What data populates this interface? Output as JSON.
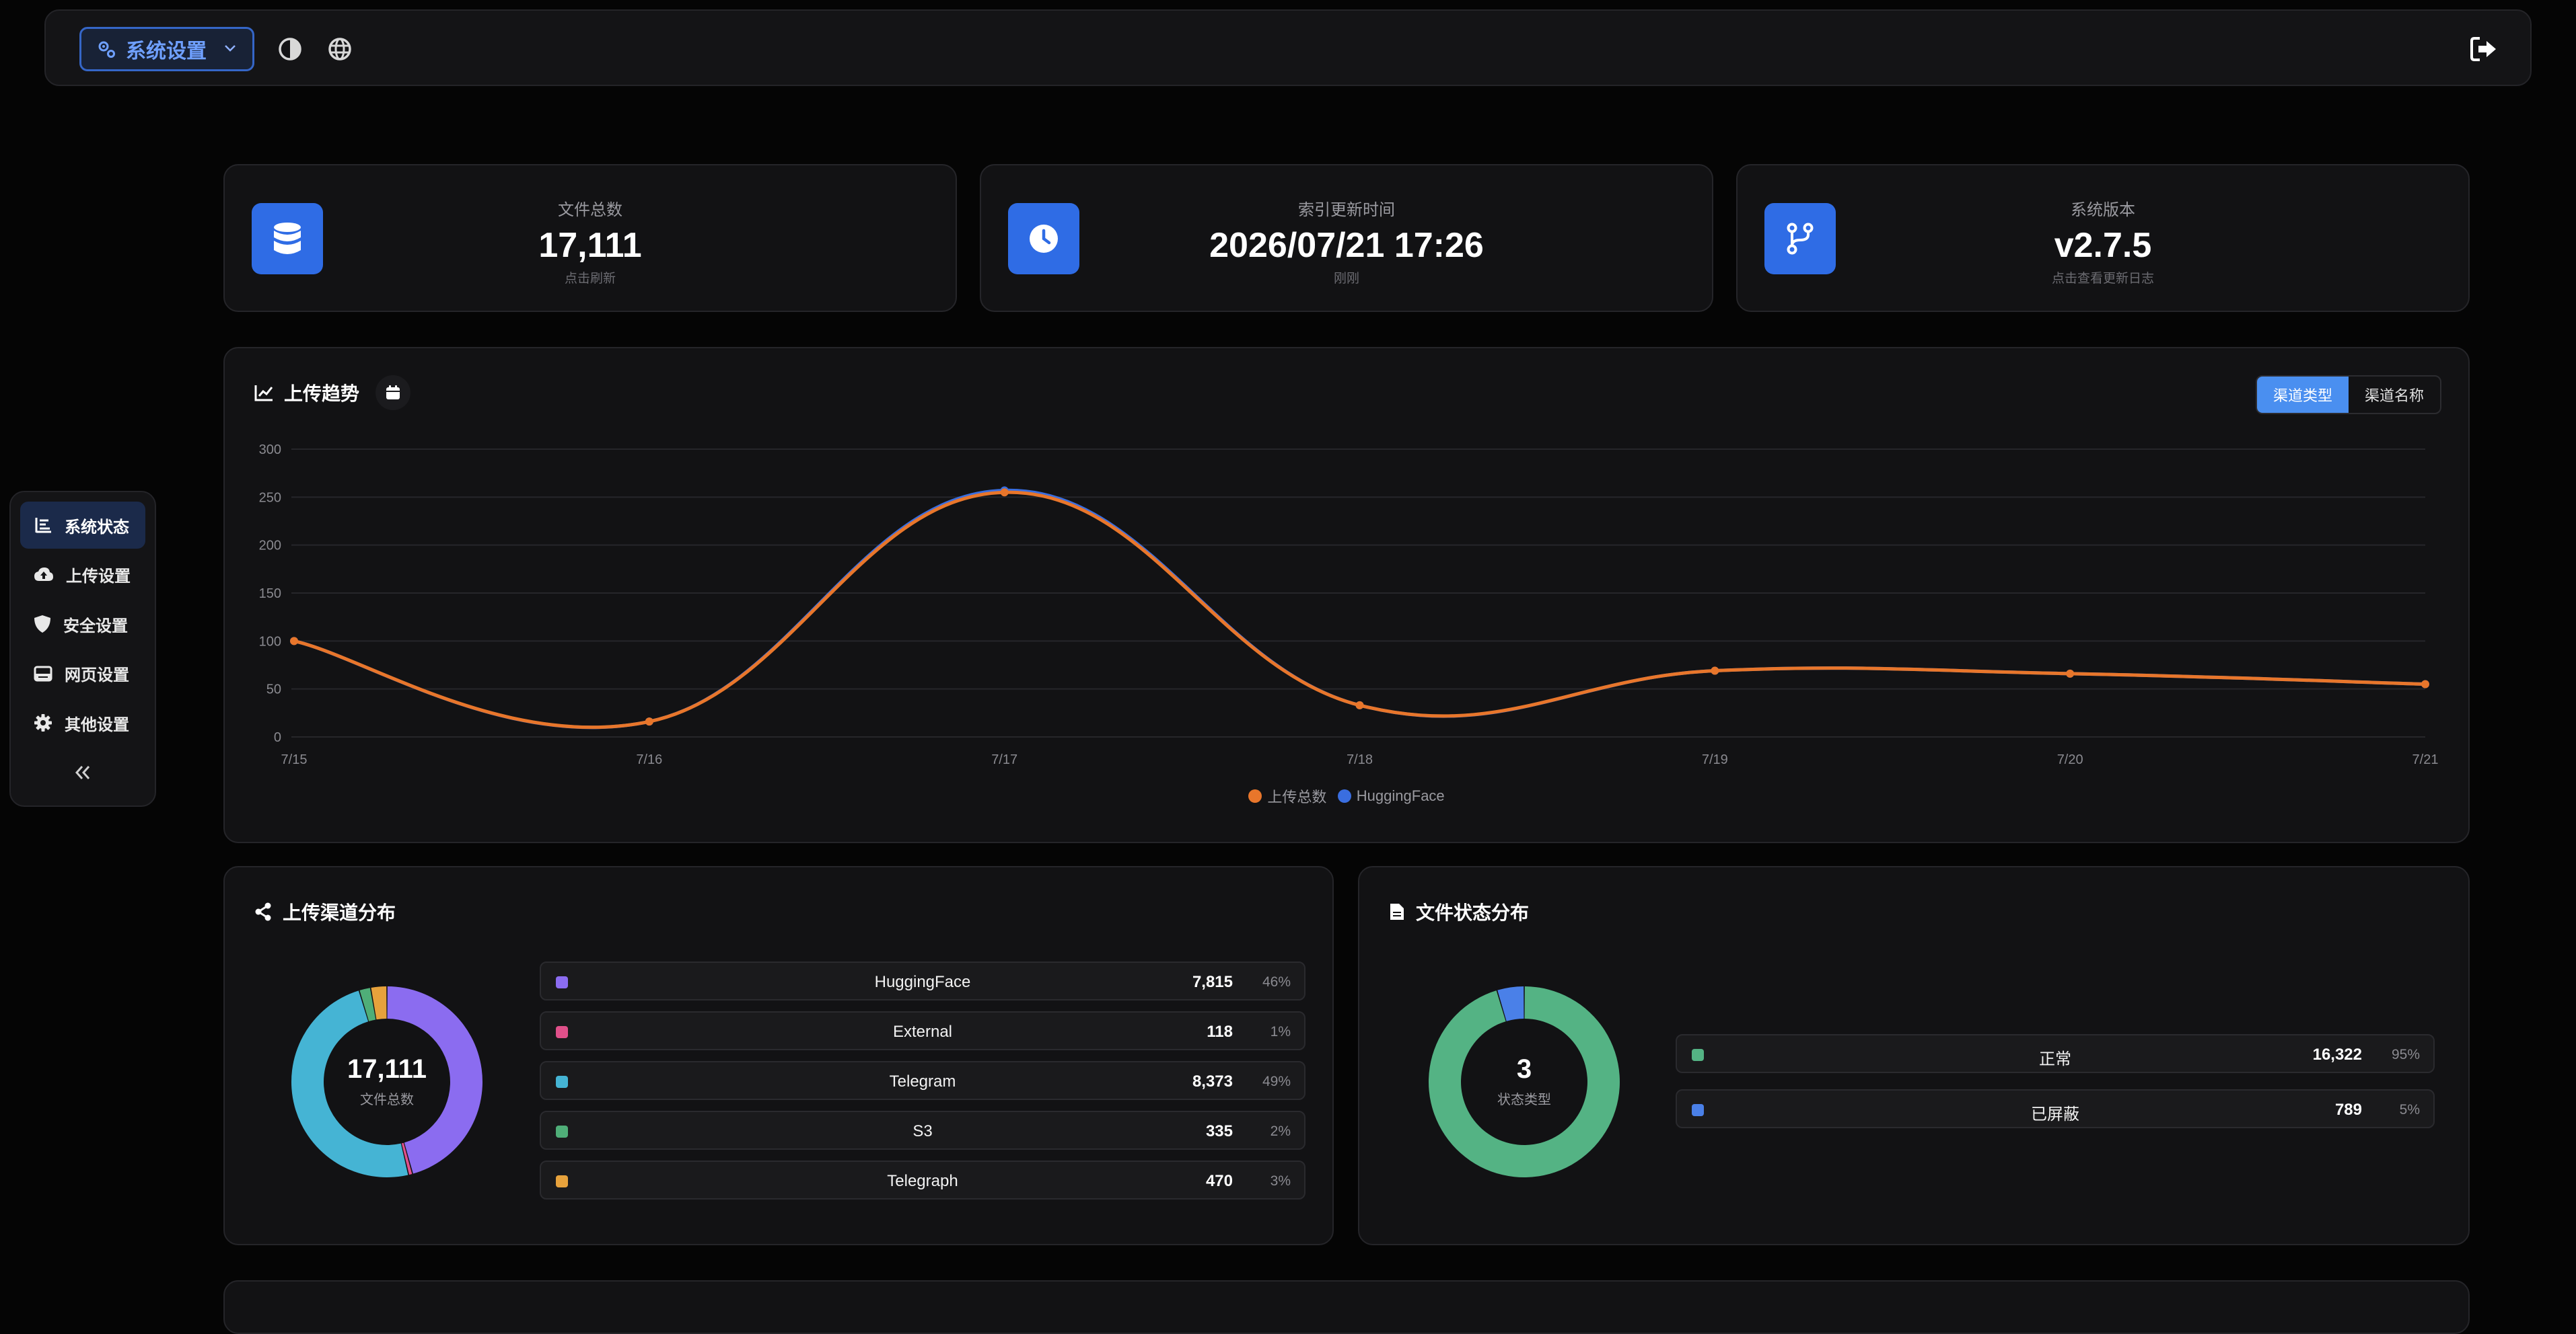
{
  "topbar": {
    "settings_label": "系统设置",
    "icons": [
      "gears-icon",
      "chevron-down-icon",
      "theme-toggle-icon",
      "globe-icon",
      "logout-icon"
    ]
  },
  "sidebar": {
    "items": [
      {
        "label": "系统状态",
        "icon": "bar-list-icon",
        "active": true
      },
      {
        "label": "上传设置",
        "icon": "cloud-upload-icon",
        "active": false
      },
      {
        "label": "安全设置",
        "icon": "shield-icon",
        "active": false
      },
      {
        "label": "网页设置",
        "icon": "window-icon",
        "active": false
      },
      {
        "label": "其他设置",
        "icon": "gear-icon",
        "active": false
      }
    ],
    "collapse_icon": "double-chevron-left-icon"
  },
  "stats": [
    {
      "label": "文件总数",
      "value": "17,111",
      "sub": "点击刷新",
      "icon": "database-icon"
    },
    {
      "label": "索引更新时间",
      "value": "2026/07/21 17:26",
      "sub": "刚刚",
      "icon": "clock-icon"
    },
    {
      "label": "系统版本",
      "value": "v2.7.5",
      "sub": "点击查看更新日志",
      "icon": "git-branch-icon"
    }
  ],
  "trend": {
    "title": "上传趋势",
    "toggle": [
      "渠道类型",
      "渠道名称"
    ],
    "active_toggle": 0
  },
  "colors": {
    "accent": "#2f6ce5",
    "orange": "#e8762b",
    "blue": "#3a6ee0"
  },
  "chart_data": [
    {
      "type": "line",
      "title": "上传趋势",
      "x": [
        "7/15",
        "7/16",
        "7/17",
        "7/18",
        "7/19",
        "7/20",
        "7/21"
      ],
      "ylim": [
        0,
        300
      ],
      "yticks": [
        "300",
        "250",
        "200",
        "150",
        "100",
        "50",
        "0"
      ],
      "grid": true,
      "legend": "bottom",
      "series": [
        {
          "name": "上传总数",
          "color": "#e8762b",
          "values": [
            100,
            16,
            255,
            33,
            69,
            66,
            55
          ]
        },
        {
          "name": "HuggingFace",
          "color": "#3a6ee0",
          "values": [
            100,
            16,
            257,
            33,
            69,
            66,
            55
          ]
        }
      ]
    },
    {
      "type": "pie",
      "title": "上传渠道分布",
      "center_value": "17,111",
      "center_label": "文件总数",
      "slices": [
        {
          "name": "HuggingFace",
          "value": 7815,
          "pct": "46%",
          "color": "#8b6cf0"
        },
        {
          "name": "External",
          "value": 118,
          "pct": "1%",
          "color": "#e0508a"
        },
        {
          "name": "Telegram",
          "value": 8373,
          "pct": "49%",
          "color": "#45b4d4"
        },
        {
          "name": "S3",
          "value": 335,
          "pct": "2%",
          "color": "#4fae78"
        },
        {
          "name": "Telegraph",
          "value": 470,
          "pct": "3%",
          "color": "#e7a23c"
        }
      ]
    },
    {
      "type": "pie",
      "title": "文件状态分布",
      "center_value": "3",
      "center_label": "状态类型",
      "slices": [
        {
          "name": "正常",
          "value": 16322,
          "pct": "95%",
          "color": "#54b384"
        },
        {
          "name": "已屏蔽",
          "value": 789,
          "pct": "5%",
          "color": "#4a80e8"
        }
      ]
    }
  ]
}
